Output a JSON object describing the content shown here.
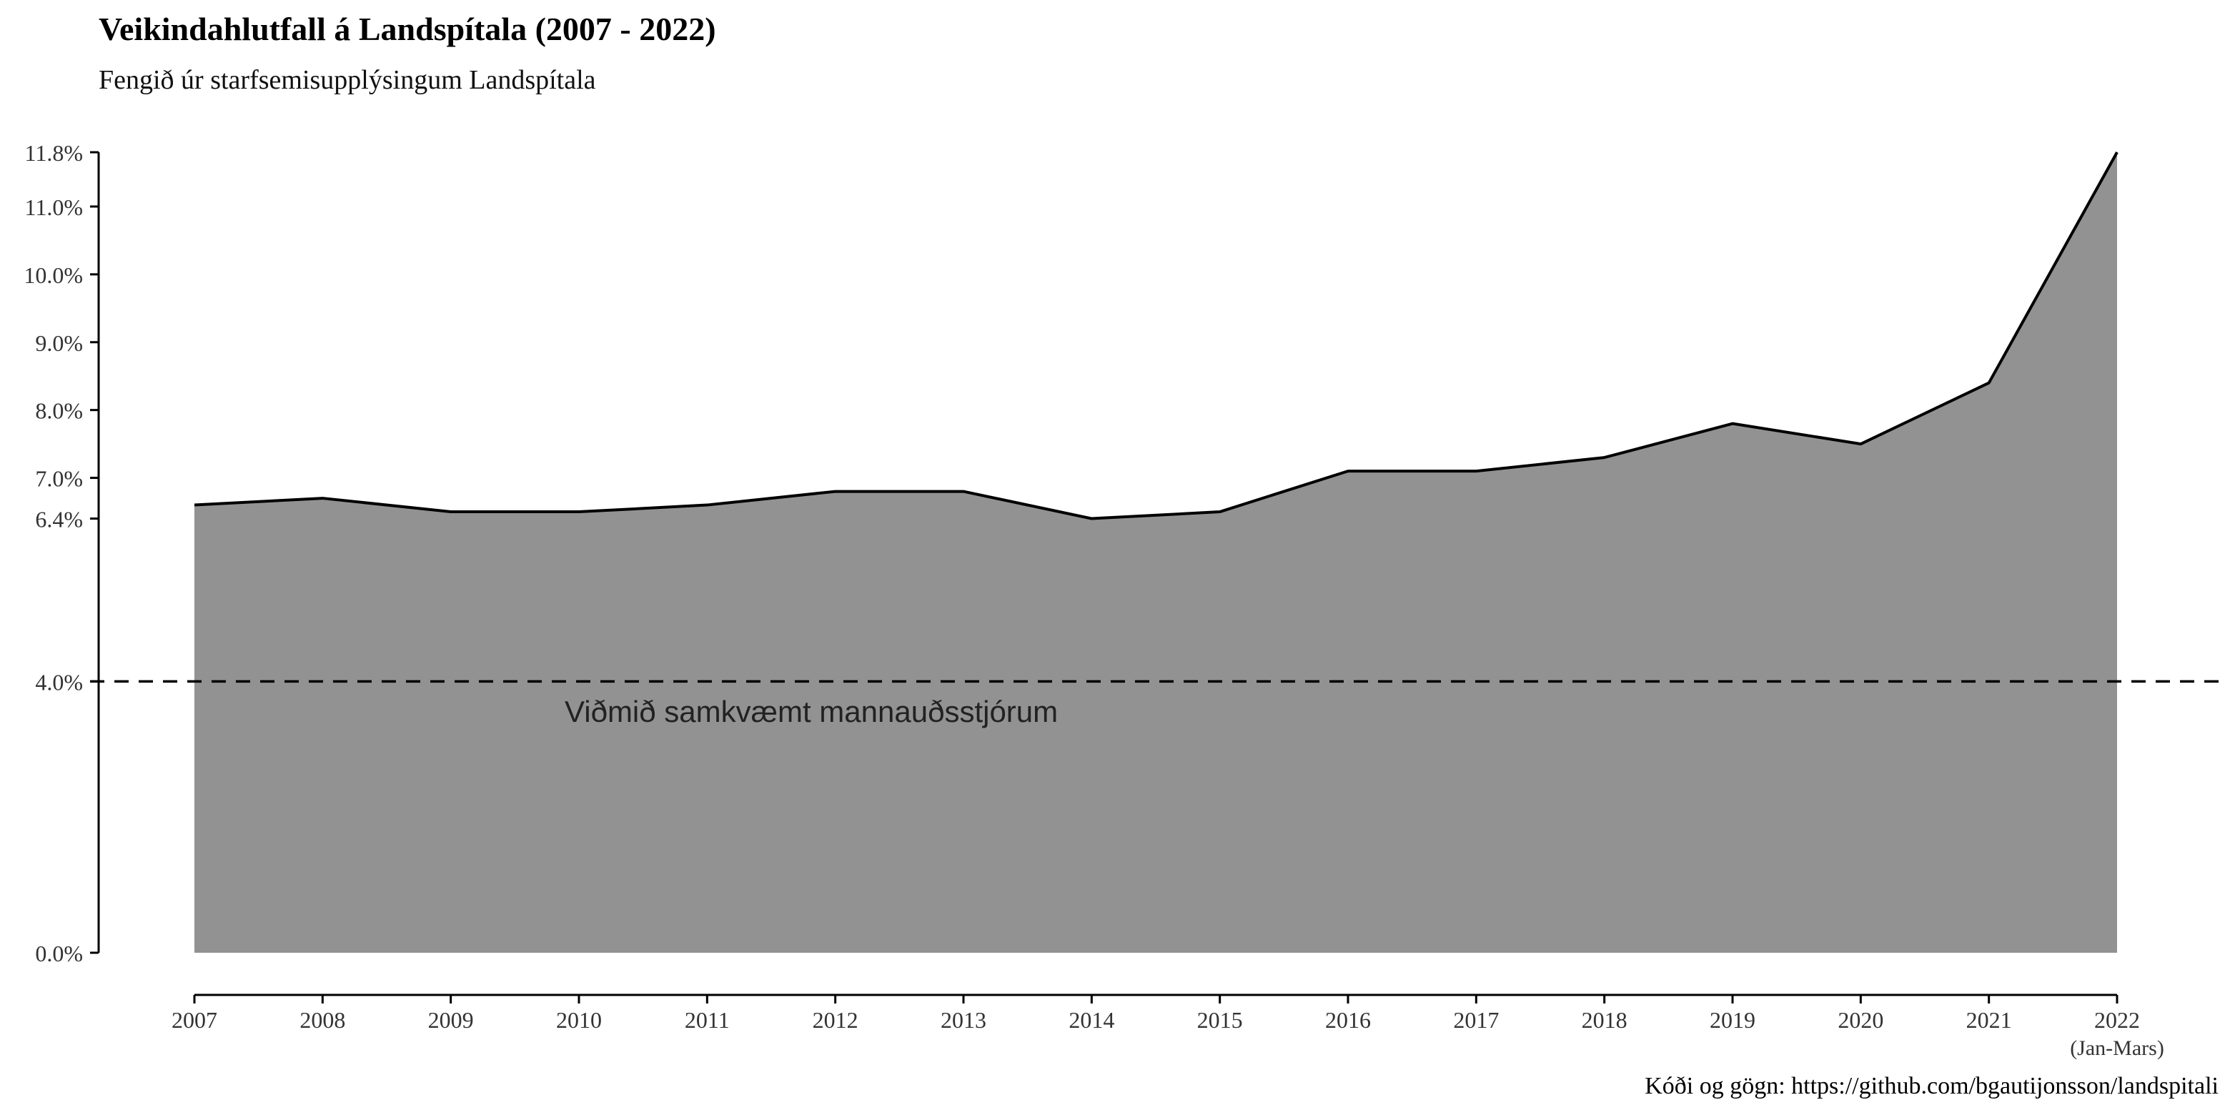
{
  "chart_data": {
    "type": "area",
    "title": "Veikindahlutfall á Landspítala (2007 - 2022)",
    "subtitle": "Fengið úr starfsemisupplýsingum Landspítala",
    "caption": "Kóði og gögn: https://github.com/bgautijonsson/landspitali",
    "x": [
      2007,
      2008,
      2009,
      2010,
      2011,
      2012,
      2013,
      2014,
      2015,
      2016,
      2017,
      2018,
      2019,
      2020,
      2021,
      2022
    ],
    "values": [
      6.6,
      6.7,
      6.5,
      6.5,
      6.6,
      6.8,
      6.8,
      6.4,
      6.5,
      7.1,
      7.1,
      7.3,
      7.8,
      7.5,
      8.4,
      11.8
    ],
    "x_tick_labels": [
      "2007",
      "2008",
      "2009",
      "2010",
      "2011",
      "2012",
      "2013",
      "2014",
      "2015",
      "2016",
      "2017",
      "2018",
      "2019",
      "2020",
      "2021",
      "2022"
    ],
    "x_tick_sublabel": "(Jan-Mars)",
    "y_ticks": [
      0,
      4,
      6.4,
      7,
      8,
      9,
      10,
      11,
      11.8
    ],
    "y_tick_labels": [
      "0.0%",
      "4.0%",
      "6.4%",
      "7.0%",
      "8.0%",
      "9.0%",
      "10.0%",
      "11.0%",
      "11.8%"
    ],
    "ylim": [
      0,
      11.8
    ],
    "xlim": [
      2007,
      2022
    ],
    "reference_line": {
      "value": 4.0,
      "label": "Viðmið samkvæmt mannauðsstjórum",
      "style": "dashed"
    },
    "grid": false,
    "legend": "none",
    "colors": {
      "area_fill": "#929292",
      "line": "#000000",
      "text": "#222222"
    }
  }
}
